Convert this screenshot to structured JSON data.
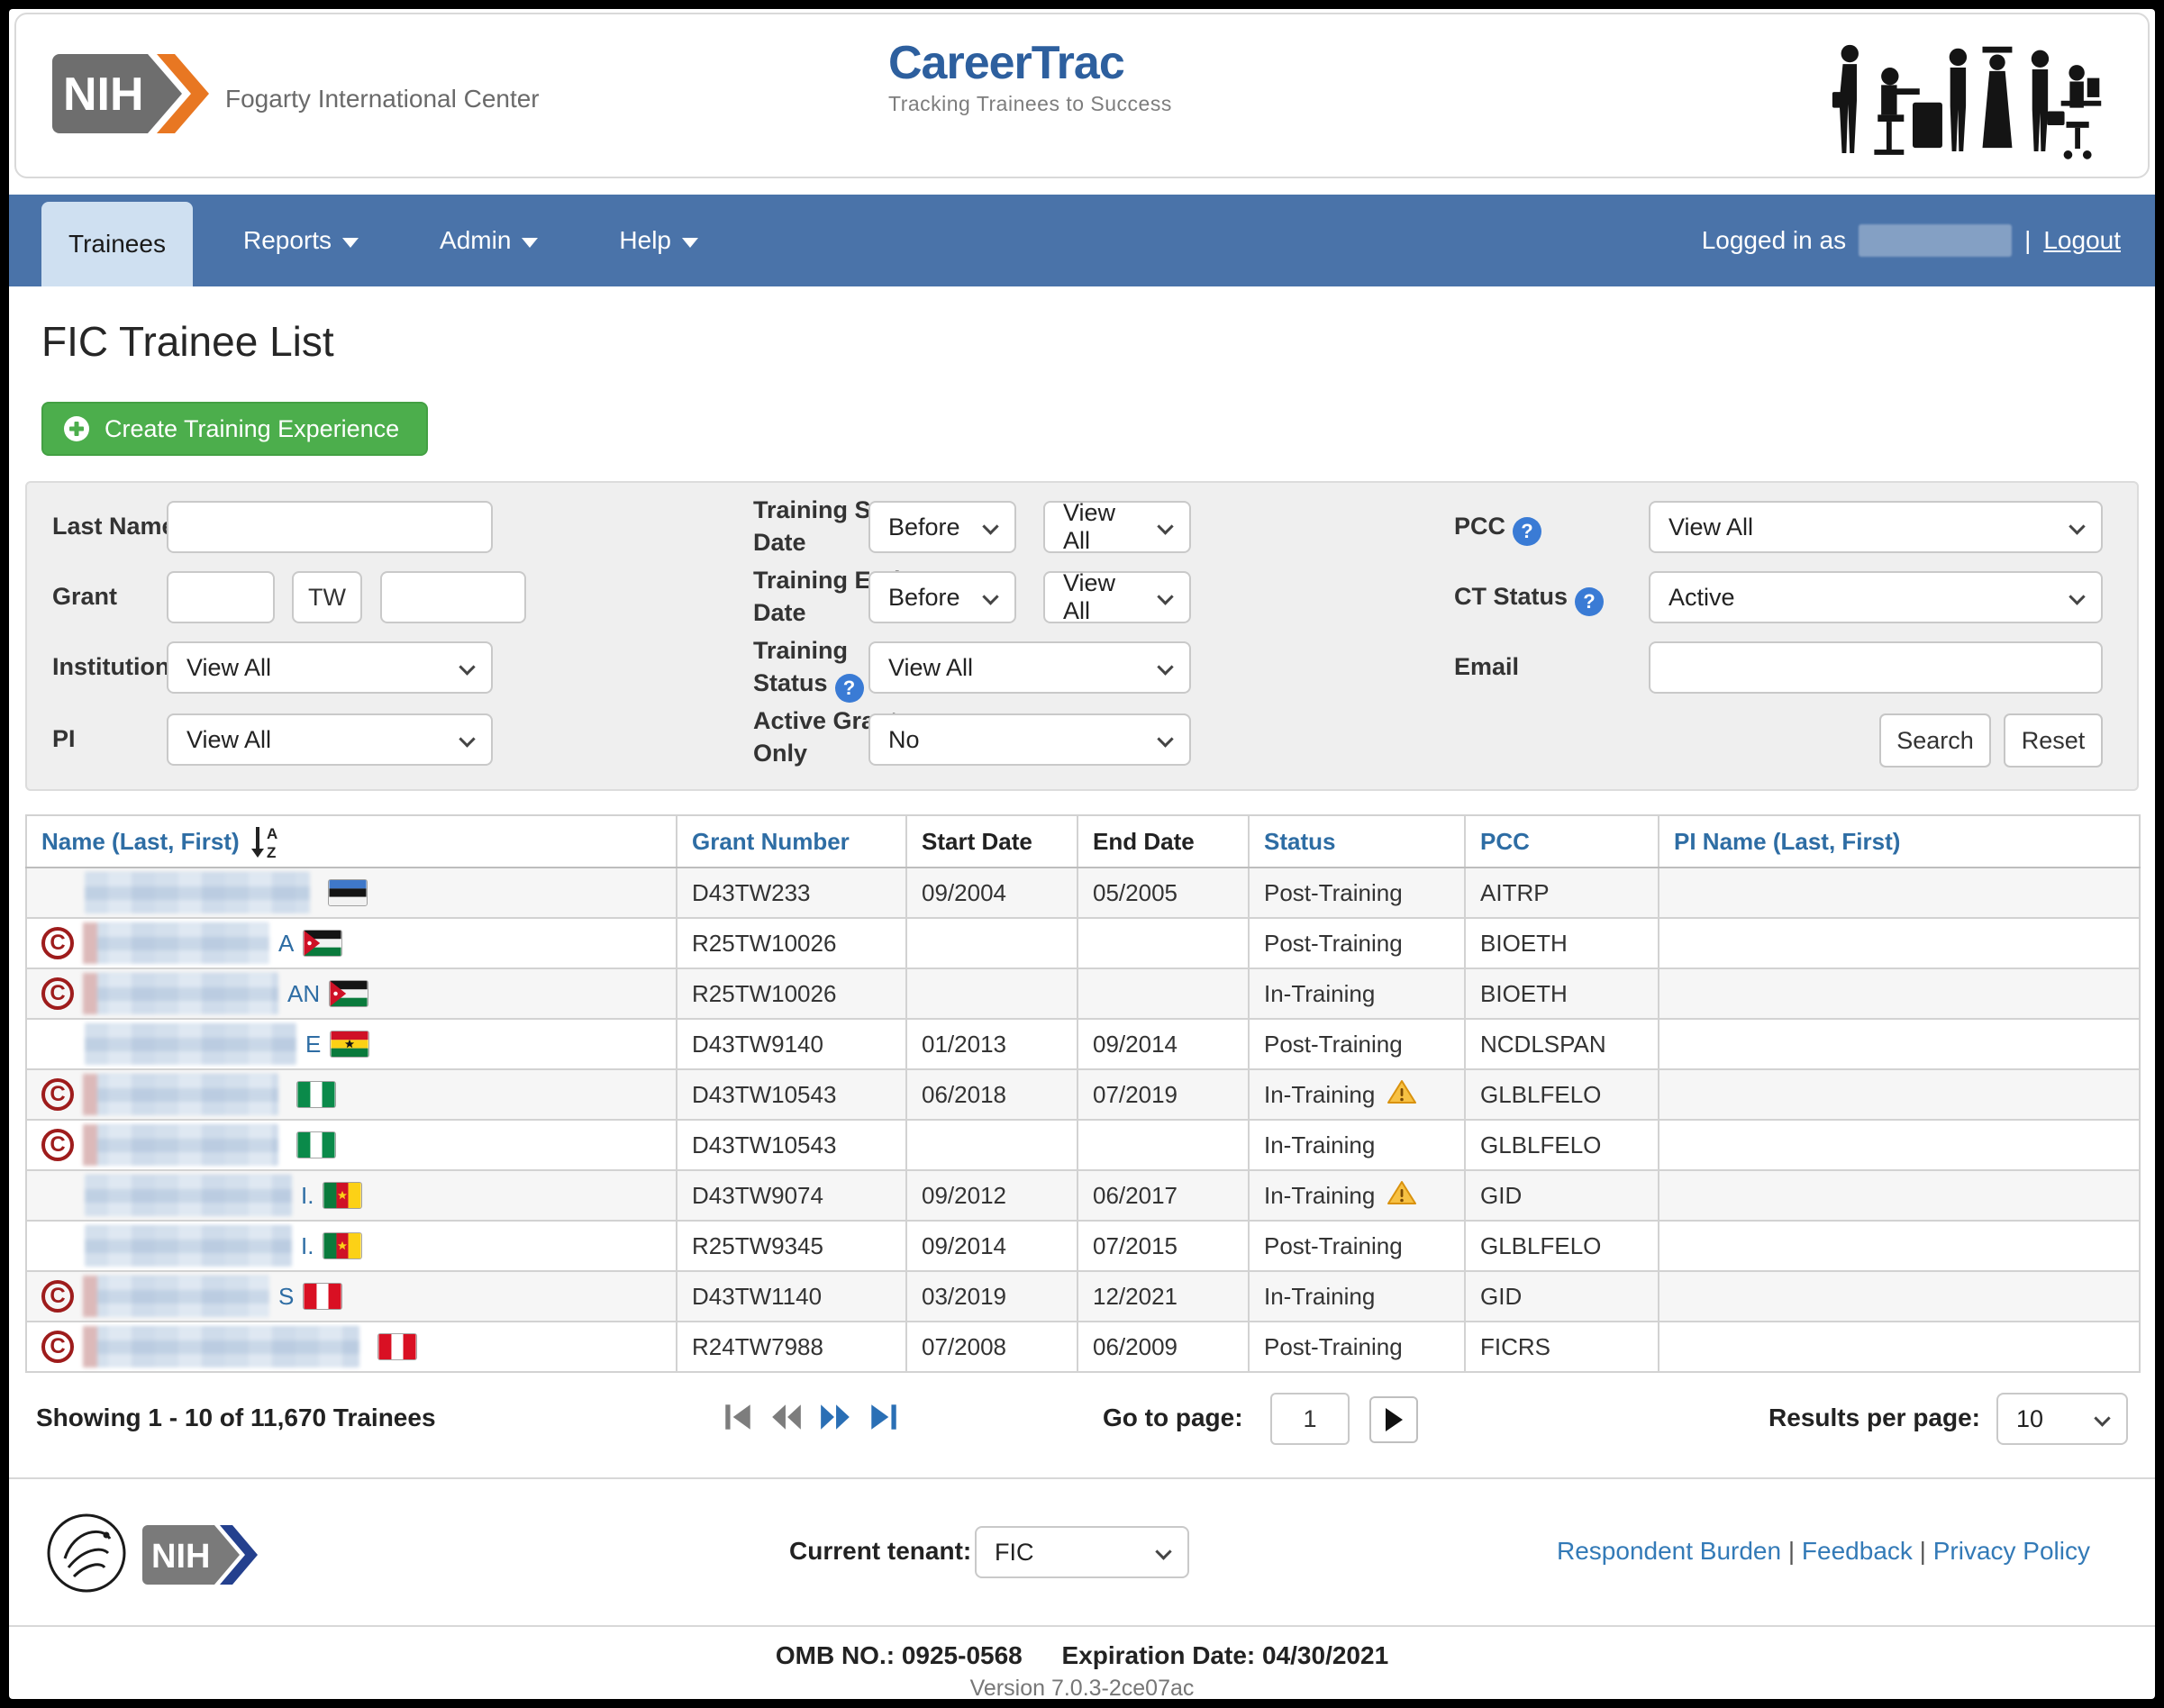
{
  "header": {
    "nih_logo_text": "NIH",
    "org_name": "Fogarty International Center",
    "app_name": "CareerTrac",
    "tagline": "Tracking Trainees to Success"
  },
  "nav": {
    "items": [
      {
        "label": "Trainees",
        "active": true
      },
      {
        "label": "Reports",
        "dropdown": true
      },
      {
        "label": "Admin",
        "dropdown": true
      },
      {
        "label": "Help",
        "dropdown": true
      }
    ],
    "logged_in_as_label": "Logged in as",
    "divider": "|",
    "logout_label": "Logout"
  },
  "page": {
    "title": "FIC Trainee List",
    "create_button_label": "Create Training Experience"
  },
  "filters": {
    "last_name_label": "Last Name",
    "grant_label": "Grant",
    "grant_infix": "TW",
    "institution_label": "Institution",
    "institution_value": "View All",
    "pi_label": "PI",
    "pi_value": "View All",
    "training_start_label": "Training Start Date",
    "training_start_op": "Before",
    "training_start_value": "View All",
    "training_end_label": "Training End Date",
    "training_end_op": "Before",
    "training_end_value": "View All",
    "training_status_label": "Training Status",
    "training_status_value": "View All",
    "active_grants_label": "Active Grants Only",
    "active_grants_value": "No",
    "pcc_label": "PCC",
    "pcc_value": "View All",
    "ct_status_label": "CT Status",
    "ct_status_value": "Active",
    "email_label": "Email",
    "search_label": "Search",
    "reset_label": "Reset"
  },
  "table": {
    "columns": [
      {
        "label": "Name (Last, First)",
        "sortable": true,
        "sorted": "asc"
      },
      {
        "label": "Grant Number",
        "sortable": true
      },
      {
        "label": "Start Date",
        "sortable": false
      },
      {
        "label": "End Date",
        "sortable": false
      },
      {
        "label": "Status",
        "sortable": true
      },
      {
        "label": "PCC",
        "sortable": true
      },
      {
        "label": "PI Name (Last, First)",
        "sortable": true
      }
    ],
    "rows": [
      {
        "c_badge": false,
        "name_fragment": "",
        "country": "estonia",
        "name_blur_w": 250,
        "grant": "D43TW233",
        "start": "09/2004",
        "end": "05/2005",
        "status": "Post-Training",
        "warning": false,
        "pcc": "AITRP",
        "pi_blur_w": 300
      },
      {
        "c_badge": true,
        "name_fragment": "A",
        "country": "jordan",
        "name_blur_w": 205,
        "grant": "R25TW10026",
        "start": "",
        "end": "",
        "status": "Post-Training",
        "warning": false,
        "pcc": "BIOETH",
        "pi_blur_w": 280
      },
      {
        "c_badge": true,
        "name_fragment": "AN",
        "country": "jordan",
        "name_blur_w": 215,
        "grant": "R25TW10026",
        "start": "",
        "end": "",
        "status": "In-Training",
        "warning": false,
        "pcc": "BIOETH",
        "pi_blur_w": 280
      },
      {
        "c_badge": false,
        "name_fragment": "E",
        "country": "ghana",
        "name_blur_w": 235,
        "grant": "D43TW9140",
        "start": "01/2013",
        "end": "09/2014",
        "status": "Post-Training",
        "warning": false,
        "pcc": "NCDLSPAN",
        "pi_blur_w": 290
      },
      {
        "c_badge": true,
        "name_fragment": "",
        "country": "nigeria",
        "name_blur_w": 215,
        "grant": "D43TW10543",
        "start": "06/2018",
        "end": "07/2019",
        "status": "In-Training",
        "warning": true,
        "pcc": "GLBLFELO",
        "pi_blur_w": 265
      },
      {
        "c_badge": true,
        "name_fragment": "",
        "country": "nigeria",
        "name_blur_w": 215,
        "grant": "D43TW10543",
        "start": "",
        "end": "",
        "status": "In-Training",
        "warning": false,
        "pcc": "GLBLFELO",
        "pi_blur_w": 265
      },
      {
        "c_badge": false,
        "name_fragment": "I.",
        "country": "cameroon",
        "name_blur_w": 230,
        "grant": "D43TW9074",
        "start": "09/2012",
        "end": "06/2017",
        "status": "In-Training",
        "warning": true,
        "pcc": "GID",
        "pi_blur_w": 290
      },
      {
        "c_badge": false,
        "name_fragment": "I.",
        "country": "cameroon",
        "name_blur_w": 230,
        "grant": "R25TW9345",
        "start": "09/2014",
        "end": "07/2015",
        "status": "Post-Training",
        "warning": false,
        "pcc": "GLBLFELO",
        "pi_blur_w": 290
      },
      {
        "c_badge": true,
        "name_fragment": "S",
        "country": "peru",
        "name_blur_w": 205,
        "grant": "D43TW1140",
        "start": "03/2019",
        "end": "12/2021",
        "status": "In-Training",
        "warning": false,
        "pcc": "GID",
        "pi_blur_w": 265
      },
      {
        "c_badge": true,
        "name_fragment": "",
        "country": "peru",
        "name_blur_w": 305,
        "grant": "R24TW7988",
        "start": "07/2008",
        "end": "06/2009",
        "status": "Post-Training",
        "warning": false,
        "pcc": "FICRS",
        "pi_blur_w": 310
      }
    ]
  },
  "pagination": {
    "showing_text": "Showing 1 - 10 of 11,670 Trainees",
    "go_to_page_label": "Go to page:",
    "page_value": "1",
    "results_per_page_label": "Results per page:",
    "results_per_page_value": "10"
  },
  "footer": {
    "current_tenant_label": "Current tenant:",
    "current_tenant_value": "FIC",
    "links": [
      {
        "label": "Respondent Burden"
      },
      {
        "label": "Feedback"
      },
      {
        "label": "Privacy Policy"
      }
    ],
    "link_divider": "|",
    "omb_text": "OMB NO.: 0925-0568",
    "expiration_text": "Expiration Date: 04/30/2021",
    "version_text": "Version 7.0.3-2ce07ac"
  },
  "colors": {
    "nav_blue": "#4a73a9",
    "active_tab": "#cfe0f1",
    "link_blue": "#2e6da4",
    "button_green": "#4cae4c",
    "badge_red": "#9e1c1c",
    "brand_blue": "#2d5f9e"
  }
}
